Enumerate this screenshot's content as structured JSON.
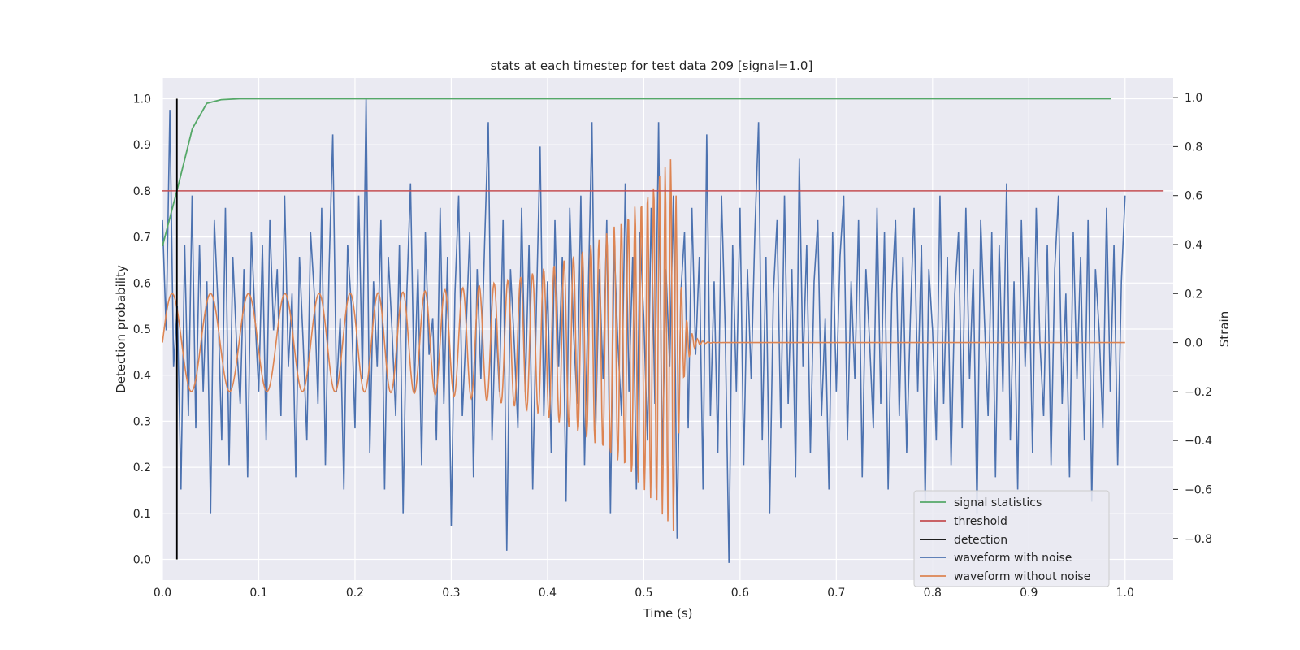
{
  "chart_data": {
    "type": "line",
    "title": "stats at each timestep for test data 209 [signal=1.0]",
    "xlabel": "Time (s)",
    "ylabel_left": "Detection probability",
    "ylabel_right": "Strain",
    "xlim": [
      0.0,
      1.05
    ],
    "ylim_left": [
      -0.045,
      1.045
    ],
    "ylim_right": [
      -0.97,
      1.08
    ],
    "x_ticks": [
      0.0,
      0.1,
      0.2,
      0.3,
      0.4,
      0.5,
      0.6,
      0.7,
      0.8,
      0.9,
      1.0
    ],
    "x_tick_labels": [
      "0.0",
      "0.1",
      "0.2",
      "0.3",
      "0.4",
      "0.5",
      "0.6",
      "0.7",
      "0.8",
      "0.9",
      "1.0"
    ],
    "y_left_ticks": [
      0.0,
      0.1,
      0.2,
      0.3,
      0.4,
      0.5,
      0.6,
      0.7,
      0.8,
      0.9,
      1.0
    ],
    "y_left_tick_labels": [
      "0.0",
      "0.1",
      "0.2",
      "0.3",
      "0.4",
      "0.5",
      "0.6",
      "0.7",
      "0.8",
      "0.9",
      "1.0"
    ],
    "y_right_ticks": [
      -0.8,
      -0.6,
      -0.4,
      -0.2,
      0.0,
      0.2,
      0.4,
      0.6,
      0.8,
      1.0
    ],
    "y_right_tick_labels": [
      "−0.8",
      "−0.6",
      "−0.4",
      "−0.2",
      "0.0",
      "0.2",
      "0.4",
      "0.6",
      "0.8",
      "1.0"
    ],
    "grid": true,
    "legend_position": "lower-right",
    "series": [
      {
        "name": "signal statistics",
        "axis": "left",
        "color": "#55a868",
        "x": [
          0.0,
          0.015,
          0.031,
          0.046,
          0.061,
          0.08,
          0.2,
          0.5,
          0.8,
          0.985
        ],
        "y": [
          0.68,
          0.8,
          0.935,
          0.99,
          0.998,
          1.0,
          1.0,
          1.0,
          1.0,
          1.0
        ]
      },
      {
        "name": "threshold",
        "axis": "left",
        "color": "#c44e52",
        "x": [
          0.0,
          1.04
        ],
        "y": [
          0.8,
          0.8
        ]
      },
      {
        "name": "detection",
        "axis": "left",
        "color": "#000000",
        "x": [
          0.015,
          0.015
        ],
        "y": [
          0.0,
          1.0
        ]
      },
      {
        "name": "waveform with noise",
        "axis": "right",
        "color": "#4c72b0",
        "x_range": [
          0.0,
          1.0
        ],
        "y": [
          0.5,
          0.05,
          0.95,
          -0.1,
          0.15,
          -0.6,
          0.4,
          -0.3,
          0.6,
          -0.35,
          0.4,
          -0.2,
          0.25,
          -0.7,
          0.5,
          0.15,
          -0.4,
          0.55,
          -0.5,
          0.35,
          0.0,
          -0.25,
          0.3,
          -0.55,
          0.45,
          0.1,
          -0.2,
          0.4,
          -0.4,
          0.5,
          0.05,
          0.3,
          -0.3,
          0.6,
          -0.1,
          0.2,
          -0.55,
          0.35,
          0.0,
          -0.4,
          0.45,
          0.2,
          -0.25,
          0.55,
          -0.5,
          0.3,
          0.85,
          -0.2,
          0.1,
          -0.6,
          0.4,
          0.15,
          -0.35,
          0.6,
          -0.15,
          1.0,
          -0.45,
          0.25,
          -0.1,
          0.5,
          -0.6,
          0.35,
          0.05,
          -0.3,
          0.4,
          -0.7,
          0.2,
          0.65,
          -0.2,
          0.3,
          -0.5,
          0.45,
          -0.05,
          0.1,
          -0.4,
          0.55,
          -0.25,
          0.35,
          -0.75,
          0.2,
          0.6,
          -0.3,
          0.05,
          0.45,
          -0.55,
          0.3,
          -0.15,
          0.4,
          0.9,
          -0.4,
          0.1,
          -0.2,
          0.5,
          -0.85,
          0.3,
          0.0,
          -0.35,
          0.55,
          -0.2,
          0.4,
          -0.6,
          0.15,
          0.8,
          -0.3,
          0.25,
          -0.45,
          0.5,
          -0.1,
          0.35,
          -0.65,
          0.55,
          0.05,
          -0.25,
          0.6,
          -0.5,
          0.2,
          0.9,
          -0.35,
          0.3,
          -0.15,
          0.5,
          -0.7,
          0.4,
          0.0,
          -0.3,
          0.65,
          -0.2,
          0.35,
          -0.6,
          0.45,
          0.1,
          -0.4,
          0.55,
          -0.25,
          0.9,
          -0.5,
          0.3,
          -0.1,
          0.6,
          -0.8,
          0.2,
          0.45,
          -0.35,
          0.55,
          -0.05,
          0.35,
          -0.6,
          0.85,
          -0.3,
          0.25,
          -0.45,
          0.6,
          0.05,
          -0.9,
          0.4,
          -0.2,
          0.55,
          -0.5,
          0.3,
          -0.15,
          0.45,
          0.9,
          -0.4,
          0.35,
          -0.7,
          0.2,
          0.5,
          -0.35,
          0.6,
          -0.25,
          0.3,
          -0.55,
          0.75,
          -0.1,
          0.4,
          -0.45,
          0.25,
          0.5,
          -0.3,
          0.1,
          -0.6,
          0.45,
          -0.2,
          0.35,
          0.6,
          -0.4,
          0.25,
          -0.15,
          0.5,
          -0.55,
          0.3,
          0.0,
          -0.35,
          0.55,
          -0.25,
          0.45,
          -0.6,
          0.2,
          0.5,
          -0.3,
          0.35,
          -0.45,
          0.1,
          0.55,
          -0.2,
          0.4,
          -0.65,
          0.3,
          0.05,
          -0.4,
          0.6,
          -0.25,
          0.35,
          -0.5,
          0.2,
          0.45,
          -0.35,
          0.55,
          -0.15,
          0.3,
          -0.7,
          0.5,
          0.1,
          -0.3,
          0.45,
          -0.55,
          0.4,
          -0.2,
          0.65,
          -0.4,
          0.25,
          -0.6,
          0.5,
          -0.1,
          0.35,
          -0.45,
          0.55,
          0.0,
          -0.3,
          0.4,
          -0.5,
          0.3,
          0.6,
          -0.25,
          0.2,
          -0.55,
          0.45,
          -0.15,
          0.35,
          -0.4,
          0.5,
          -0.65,
          0.3,
          0.05,
          -0.35,
          0.55,
          -0.2,
          0.4,
          -0.5,
          0.25,
          0.6
        ]
      },
      {
        "name": "waveform without noise",
        "axis": "right",
        "color": "#dd8452",
        "x_range": [
          0.0,
          1.0
        ],
        "chirp": {
          "t_merger": 0.532,
          "amp_start": 0.2,
          "amp_peak": 0.78,
          "f_start": 25,
          "f_end": 180,
          "ringdown_end": 0.56
        }
      }
    ]
  }
}
